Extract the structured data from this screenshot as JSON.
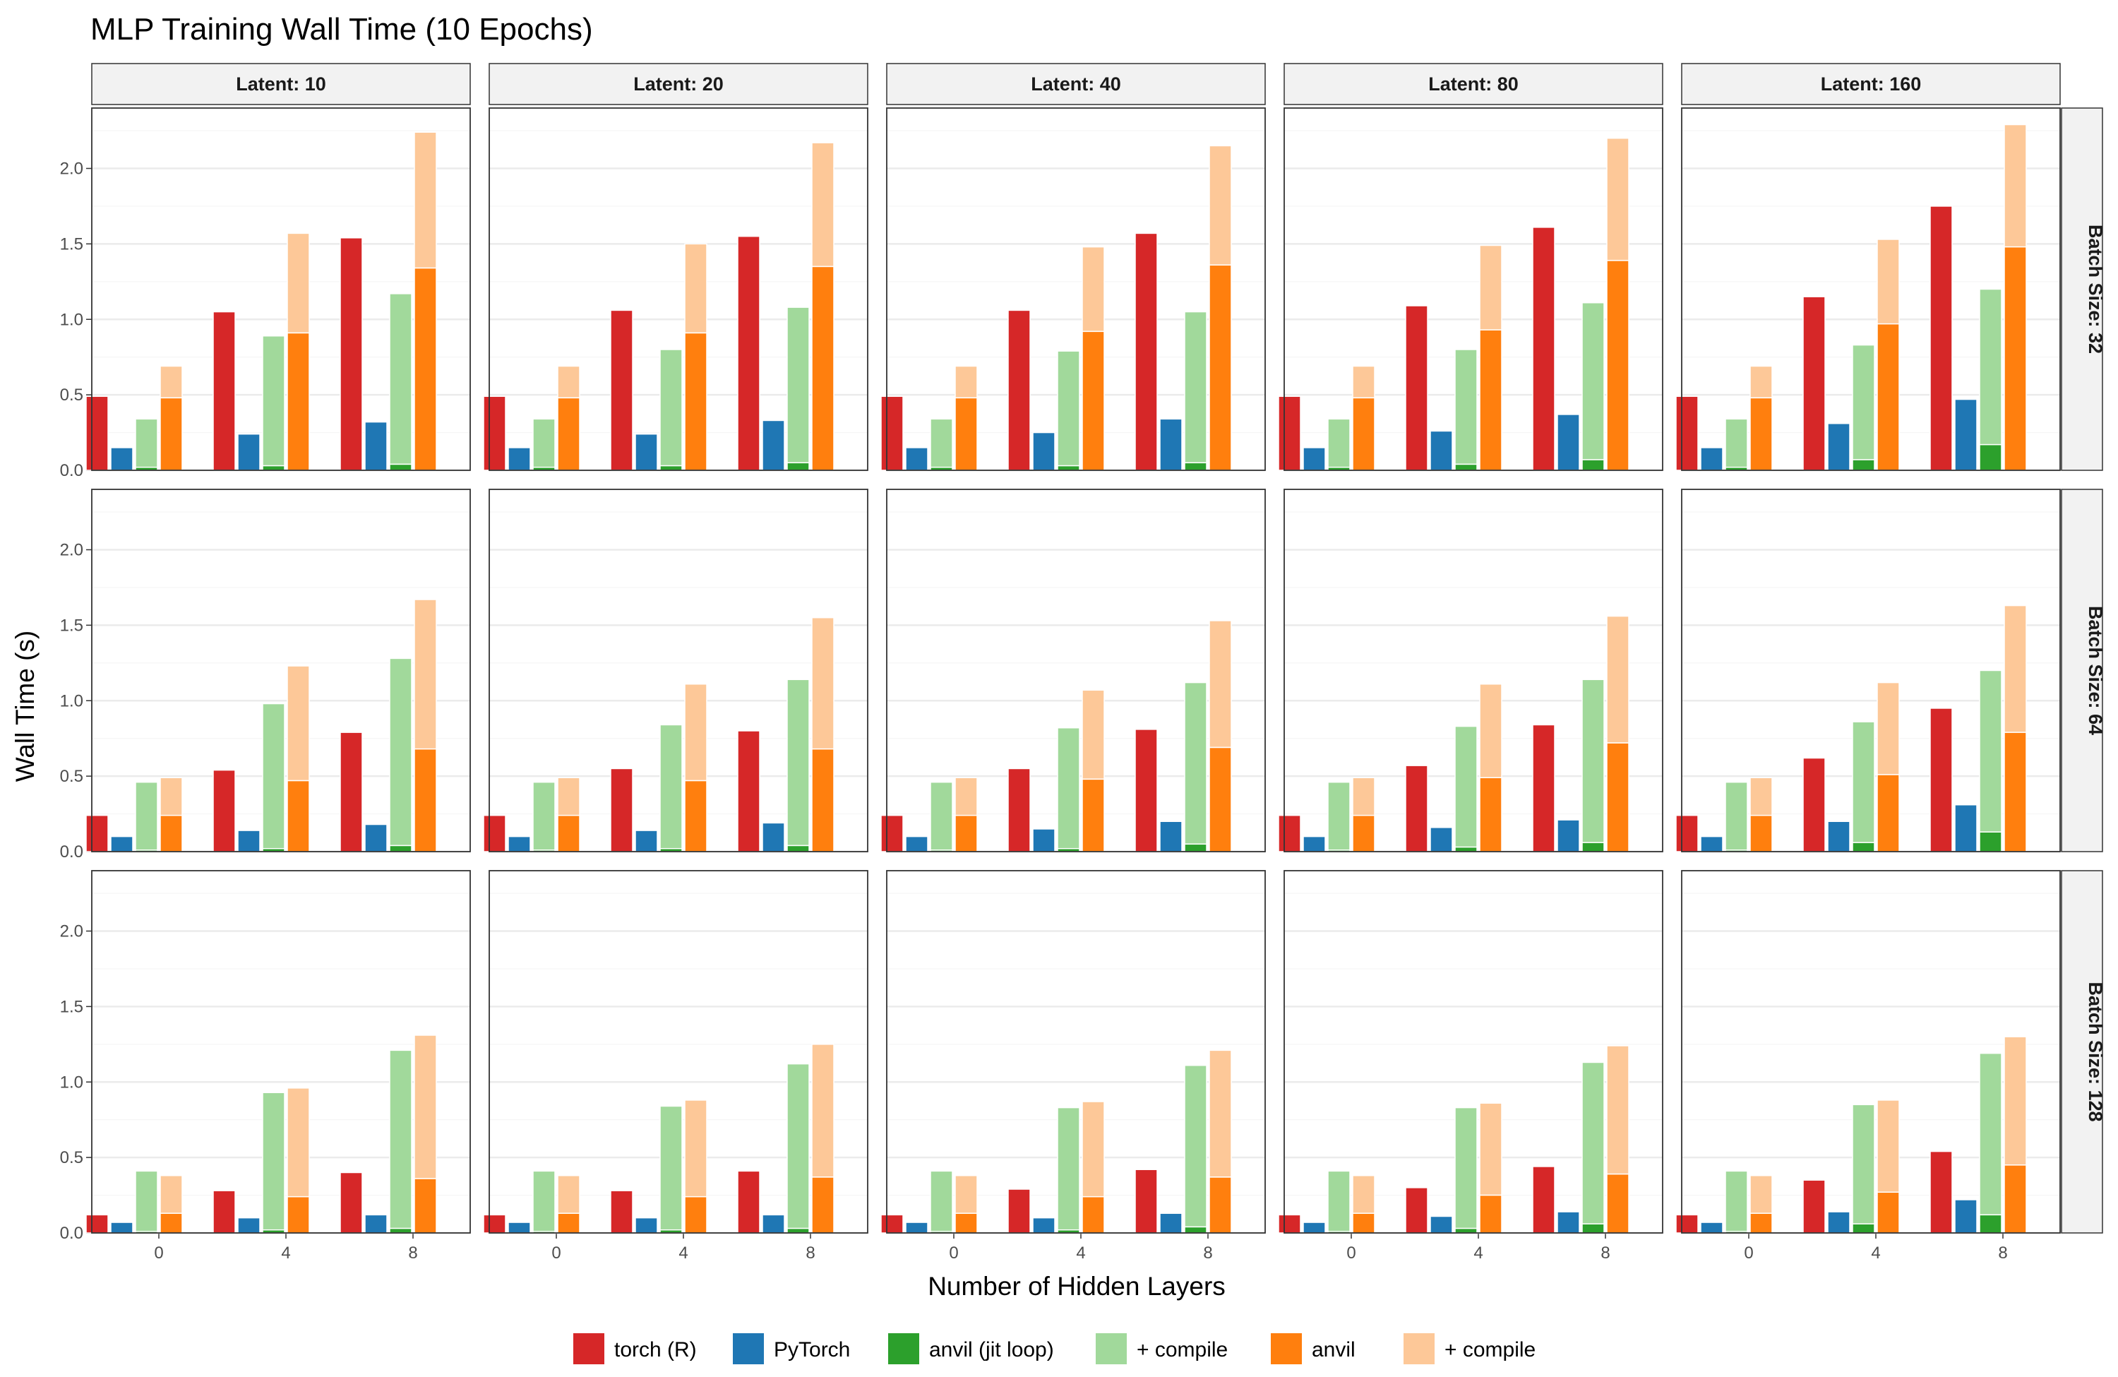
{
  "chart_data": {
    "type": "bar",
    "title": "MLP Training Wall Time (10 Epochs)",
    "xlabel": "Number of Hidden Layers",
    "ylabel": "Wall Time (s)",
    "ylim": [
      0,
      2.4
    ],
    "yticks": [
      "0.0",
      "0.5",
      "1.0",
      "1.5",
      "2.0"
    ],
    "x_categories": [
      "0",
      "4",
      "8"
    ],
    "column_facets": [
      "Latent: 10",
      "Latent: 20",
      "Latent: 40",
      "Latent: 80",
      "Latent: 160"
    ],
    "row_facets": [
      "Batch Size: 32",
      "Batch Size: 64",
      "Batch Size: 128"
    ],
    "legend": [
      {
        "label": "torch (R)",
        "color": "#d62728"
      },
      {
        "label": "PyTorch",
        "color": "#1f77b4"
      },
      {
        "label": "anvil (jit loop)",
        "color": "#2ca02c"
      },
      {
        "label": "+ compile",
        "color": "#a1d99b"
      },
      {
        "label": "anvil",
        "color": "#ff7f0e"
      },
      {
        "label": "+ compile",
        "color": "#fdc898"
      }
    ],
    "series_note": "values[row][col][layer] with layers 0,4,8; *_total = run time + compile time (stacked bar top)",
    "torch_r": [
      [
        [
          0.49,
          1.05,
          1.54
        ],
        [
          0.49,
          1.06,
          1.55
        ],
        [
          0.49,
          1.06,
          1.57
        ],
        [
          0.49,
          1.09,
          1.61
        ],
        [
          0.49,
          1.15,
          1.75
        ]
      ],
      [
        [
          0.24,
          0.54,
          0.79
        ],
        [
          0.24,
          0.55,
          0.8
        ],
        [
          0.24,
          0.55,
          0.81
        ],
        [
          0.24,
          0.57,
          0.84
        ],
        [
          0.24,
          0.62,
          0.95
        ]
      ],
      [
        [
          0.12,
          0.28,
          0.4
        ],
        [
          0.12,
          0.28,
          0.41
        ],
        [
          0.12,
          0.29,
          0.42
        ],
        [
          0.12,
          0.3,
          0.44
        ],
        [
          0.12,
          0.35,
          0.54
        ]
      ]
    ],
    "pytorch": [
      [
        [
          0.15,
          0.24,
          0.32
        ],
        [
          0.15,
          0.24,
          0.33
        ],
        [
          0.15,
          0.25,
          0.34
        ],
        [
          0.15,
          0.26,
          0.37
        ],
        [
          0.15,
          0.31,
          0.47
        ]
      ],
      [
        [
          0.1,
          0.14,
          0.18
        ],
        [
          0.1,
          0.14,
          0.19
        ],
        [
          0.1,
          0.15,
          0.2
        ],
        [
          0.1,
          0.16,
          0.21
        ],
        [
          0.1,
          0.2,
          0.31
        ]
      ],
      [
        [
          0.07,
          0.1,
          0.12
        ],
        [
          0.07,
          0.1,
          0.12
        ],
        [
          0.07,
          0.1,
          0.13
        ],
        [
          0.07,
          0.11,
          0.14
        ],
        [
          0.07,
          0.14,
          0.22
        ]
      ]
    ],
    "anvil_jit_loop": [
      [
        [
          0.02,
          0.03,
          0.04
        ],
        [
          0.02,
          0.03,
          0.05
        ],
        [
          0.02,
          0.03,
          0.05
        ],
        [
          0.02,
          0.04,
          0.07
        ],
        [
          0.02,
          0.07,
          0.17
        ]
      ],
      [
        [
          0.01,
          0.02,
          0.04
        ],
        [
          0.01,
          0.02,
          0.04
        ],
        [
          0.01,
          0.02,
          0.05
        ],
        [
          0.01,
          0.03,
          0.06
        ],
        [
          0.01,
          0.06,
          0.13
        ]
      ],
      [
        [
          0.01,
          0.02,
          0.03
        ],
        [
          0.01,
          0.02,
          0.03
        ],
        [
          0.01,
          0.02,
          0.04
        ],
        [
          0.01,
          0.03,
          0.06
        ],
        [
          0.01,
          0.06,
          0.12
        ]
      ]
    ],
    "anvil_jit_loop_total": [
      [
        [
          0.34,
          0.89,
          1.17
        ],
        [
          0.34,
          0.8,
          1.08
        ],
        [
          0.34,
          0.79,
          1.05
        ],
        [
          0.34,
          0.8,
          1.11
        ],
        [
          0.34,
          0.83,
          1.2
        ]
      ],
      [
        [
          0.46,
          0.98,
          1.28
        ],
        [
          0.46,
          0.84,
          1.14
        ],
        [
          0.46,
          0.82,
          1.12
        ],
        [
          0.46,
          0.83,
          1.14
        ],
        [
          0.46,
          0.86,
          1.2
        ]
      ],
      [
        [
          0.41,
          0.93,
          1.21
        ],
        [
          0.41,
          0.84,
          1.12
        ],
        [
          0.41,
          0.83,
          1.11
        ],
        [
          0.41,
          0.83,
          1.13
        ],
        [
          0.41,
          0.85,
          1.19
        ]
      ]
    ],
    "anvil": [
      [
        [
          0.48,
          0.91,
          1.34
        ],
        [
          0.48,
          0.91,
          1.35
        ],
        [
          0.48,
          0.92,
          1.36
        ],
        [
          0.48,
          0.93,
          1.39
        ],
        [
          0.48,
          0.97,
          1.48
        ]
      ],
      [
        [
          0.24,
          0.47,
          0.68
        ],
        [
          0.24,
          0.47,
          0.68
        ],
        [
          0.24,
          0.48,
          0.69
        ],
        [
          0.24,
          0.49,
          0.72
        ],
        [
          0.24,
          0.51,
          0.79
        ]
      ],
      [
        [
          0.13,
          0.24,
          0.36
        ],
        [
          0.13,
          0.24,
          0.37
        ],
        [
          0.13,
          0.24,
          0.37
        ],
        [
          0.13,
          0.25,
          0.39
        ],
        [
          0.13,
          0.27,
          0.45
        ]
      ]
    ],
    "anvil_total": [
      [
        [
          0.69,
          1.57,
          2.24
        ],
        [
          0.69,
          1.5,
          2.17
        ],
        [
          0.69,
          1.48,
          2.15
        ],
        [
          0.69,
          1.49,
          2.2
        ],
        [
          0.69,
          1.53,
          2.29
        ]
      ],
      [
        [
          0.49,
          1.23,
          1.67
        ],
        [
          0.49,
          1.11,
          1.55
        ],
        [
          0.49,
          1.07,
          1.53
        ],
        [
          0.49,
          1.11,
          1.56
        ],
        [
          0.49,
          1.12,
          1.63
        ]
      ],
      [
        [
          0.38,
          0.96,
          1.31
        ],
        [
          0.38,
          0.88,
          1.25
        ],
        [
          0.38,
          0.87,
          1.21
        ],
        [
          0.38,
          0.86,
          1.24
        ],
        [
          0.38,
          0.88,
          1.3
        ]
      ]
    ]
  }
}
